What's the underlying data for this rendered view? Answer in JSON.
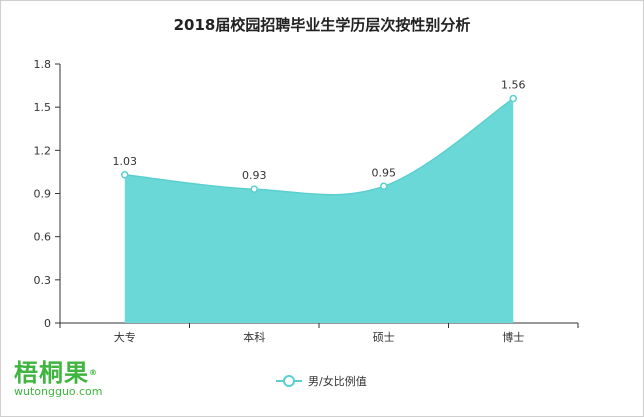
{
  "chart_data": {
    "type": "area",
    "title": "2018届校园招聘毕业生学历层次按性别分析",
    "categories": [
      "大专",
      "本科",
      "硕士",
      "博士"
    ],
    "series": [
      {
        "name": "男/女比例值",
        "values": [
          1.03,
          0.93,
          0.95,
          1.56
        ]
      }
    ],
    "ylim": [
      0,
      1.8
    ],
    "yticks": [
      "0",
      "0.3",
      "0.6",
      "0.9",
      "1.2",
      "1.5",
      "1.8"
    ],
    "data_labels": [
      "1.03",
      "0.93",
      "0.95",
      "1.56"
    ],
    "grid": false,
    "legend_position": "bottom-center",
    "colors": {
      "fill": "#6bd8d8",
      "line": "#5bcfcf",
      "marker_fill": "#ffffff",
      "axis": "#333333"
    }
  },
  "logo": {
    "name": "梧桐果",
    "registered": "®",
    "url_prefix": "wutongguo",
    "url_dot": ".",
    "url_suffix": "com"
  }
}
